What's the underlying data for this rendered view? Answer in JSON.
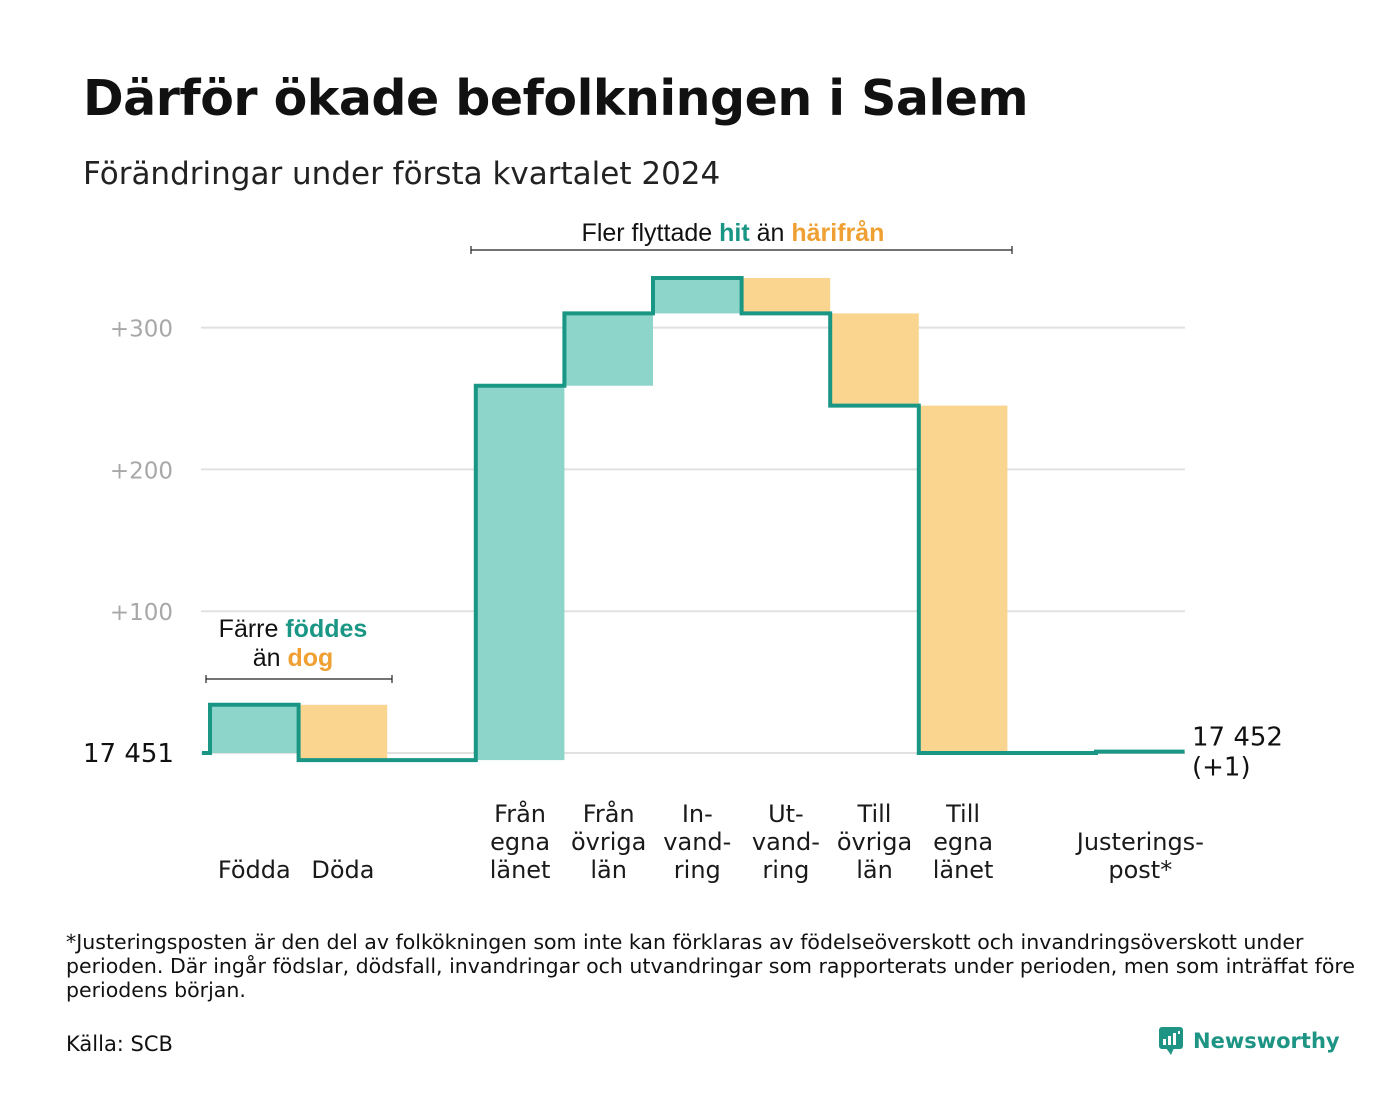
{
  "title": "Därför ökade befolkningen i Salem",
  "subtitle": "Förändringar under första kvartalet 2024",
  "colors": {
    "inflow": "#1a9685",
    "inflow_fill": "#8dd5cb",
    "outflow": "#f0a032",
    "outflow_fill": "#fad58f",
    "grid": "#e1e1e1",
    "tick": "#a8a8a8"
  },
  "chart_data": {
    "type": "waterfall",
    "start_label": "17 451",
    "end_label": "17 452",
    "end_change_label": "(+1)",
    "yticks": [
      {
        "value": 100,
        "label": "+100"
      },
      {
        "value": 200,
        "label": "+200"
      },
      {
        "value": 300,
        "label": "+300"
      }
    ],
    "ylim": [
      0,
      335
    ],
    "grid": true,
    "steps": [
      {
        "category": "Födda",
        "label_lines": [
          "Födda"
        ],
        "change": 34,
        "kind": "in"
      },
      {
        "category": "Döda",
        "label_lines": [
          "Döda"
        ],
        "change": -39,
        "kind": "out"
      },
      {
        "category": "",
        "label_lines": [],
        "change": 0,
        "kind": "gap"
      },
      {
        "category": "Från egna länet",
        "label_lines": [
          "Från",
          "egna",
          "länet"
        ],
        "change": 264,
        "kind": "in"
      },
      {
        "category": "Från övriga län",
        "label_lines": [
          "Från",
          "övriga",
          "län"
        ],
        "change": 51,
        "kind": "in"
      },
      {
        "category": "Invandring",
        "label_lines": [
          "In-",
          "vand-",
          "ring"
        ],
        "change": 25,
        "kind": "in"
      },
      {
        "category": "Utvandring",
        "label_lines": [
          "Ut-",
          "vand-",
          "ring"
        ],
        "change": -25,
        "kind": "out"
      },
      {
        "category": "Till övriga län",
        "label_lines": [
          "Till",
          "övriga",
          "län"
        ],
        "change": -65,
        "kind": "out"
      },
      {
        "category": "Till egna länet",
        "label_lines": [
          "Till",
          "egna",
          "länet"
        ],
        "change": -245,
        "kind": "out"
      },
      {
        "category": "",
        "label_lines": [],
        "change": 0,
        "kind": "gap"
      },
      {
        "category": "Justeringspost*",
        "label_lines": [
          "Justerings-",
          "post*"
        ],
        "change": 1,
        "kind": "adjust"
      }
    ],
    "annotations": [
      {
        "id": "birth",
        "lines": [
          [
            {
              "text": "Färre ",
              "style": "plain"
            },
            {
              "text": "föddes",
              "style": "in"
            }
          ],
          [
            {
              "text": "än ",
              "style": "plain"
            },
            {
              "text": "dog",
              "style": "out"
            }
          ]
        ]
      },
      {
        "id": "migration",
        "lines": [
          [
            {
              "text": "Fler flyttade ",
              "style": "plain"
            },
            {
              "text": "hit",
              "style": "in"
            },
            {
              "text": " än ",
              "style": "plain"
            },
            {
              "text": "härifrån",
              "style": "out"
            }
          ]
        ]
      }
    ]
  },
  "footnote": "*Justeringsposten är den del av folkökningen som inte kan förklaras av födelseöverskott och invandringsöverskott under perioden. Där ingår födslar, dödsfall, invandringar och utvandringar som rapporterats under perioden, men som inträffat före periodens början.",
  "source": "Källa: SCB",
  "brand": {
    "name": "Newsworthy",
    "icon": "newsworthy-logo-icon"
  }
}
